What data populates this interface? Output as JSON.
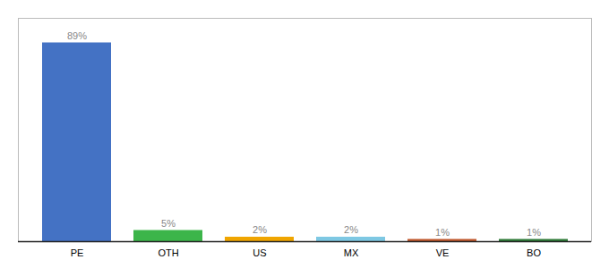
{
  "chart_data": {
    "type": "bar",
    "categories": [
      "PE",
      "OTH",
      "US",
      "MX",
      "VE",
      "BO"
    ],
    "values": [
      89,
      5,
      2,
      2,
      1,
      1
    ],
    "value_labels": [
      "89%",
      "5%",
      "2%",
      "2%",
      "1%",
      "1%"
    ],
    "colors": [
      "#4472c4",
      "#3cb54a",
      "#f0a500",
      "#7ec8e3",
      "#c0572b",
      "#2e7b37"
    ],
    "ylim": [
      0,
      100
    ],
    "data_labels": true,
    "tick_labels": "x"
  }
}
